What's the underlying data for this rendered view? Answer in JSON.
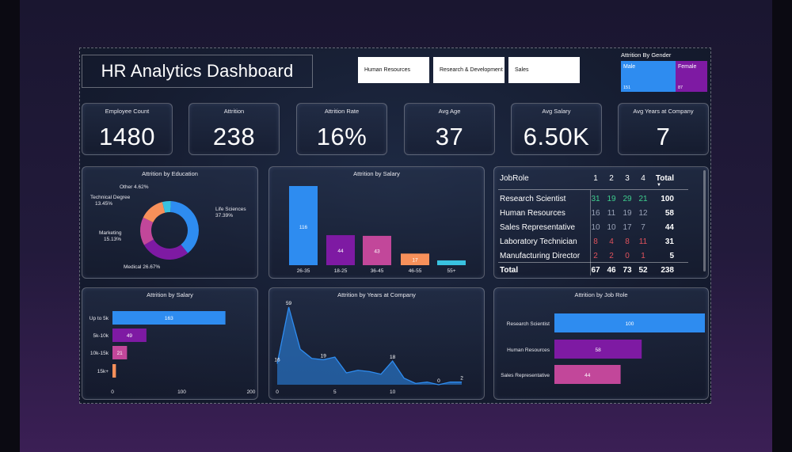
{
  "dashboard": {
    "title": "HR Analytics Dashboard",
    "slicers": [
      "Human Resources",
      "Research & Development",
      "Sales"
    ],
    "gender": {
      "title": "Attrition By Gender",
      "tiles": [
        {
          "label": "Male",
          "count": "151",
          "color": "#2e8cf0"
        },
        {
          "label": "Female",
          "count": "87",
          "color": "#7e1aa3"
        }
      ]
    }
  },
  "kpis": [
    {
      "label": "Employee Count",
      "value": "1480"
    },
    {
      "label": "Attrition",
      "value": "238"
    },
    {
      "label": "Attrition Rate",
      "value": "16%"
    },
    {
      "label": "Avg Age",
      "value": "37"
    },
    {
      "label": "Avg Salary",
      "value": "6.50K"
    },
    {
      "label": "Avg Years at Company",
      "value": "7"
    }
  ],
  "colors": {
    "blue": "#2e8cf0",
    "purple": "#7e1aa3",
    "pink": "#c2479a",
    "orange": "#f7905a",
    "cyan": "#39c2e0",
    "green": "#3ecf8e",
    "red": "#e0525c"
  },
  "chart_data": [
    {
      "type": "pie",
      "title": "Attrition by Education",
      "categories": [
        "Life Sciences",
        "Medical",
        "Marketing",
        "Technical Degree",
        "Other"
      ],
      "values": [
        37.39,
        26.67,
        15.13,
        13.45,
        4.62
      ],
      "labels": [
        "37.39%",
        "26.67%",
        "15.13%",
        "13.45%",
        "4.62%"
      ],
      "colors": [
        "#2e8cf0",
        "#7e1aa3",
        "#c2479a",
        "#f7905a",
        "#39c2e0"
      ]
    },
    {
      "type": "bar",
      "title": "Attrition by Salary",
      "categories": [
        "26-35",
        "18-25",
        "36-45",
        "46-55",
        "55+"
      ],
      "values": [
        116,
        44,
        43,
        17,
        7
      ],
      "data_labels": [
        "116",
        "44",
        "43",
        "17",
        ""
      ],
      "colors": [
        "#2e8cf0",
        "#7e1aa3",
        "#c2479a",
        "#f7905a",
        "#39c2e0"
      ]
    },
    {
      "type": "table",
      "title": "",
      "columns": [
        "JobRole",
        "1",
        "2",
        "3",
        "4",
        "Total"
      ],
      "rows": [
        {
          "role": "Research Scientist",
          "values": [
            31,
            19,
            29,
            21
          ],
          "total": 100
        },
        {
          "role": "Human Resources",
          "values": [
            16,
            11,
            19,
            12
          ],
          "total": 58
        },
        {
          "role": "Sales Representative",
          "values": [
            10,
            10,
            17,
            7
          ],
          "total": 44
        },
        {
          "role": "Laboratory Technician",
          "values": [
            8,
            4,
            8,
            11
          ],
          "total": 31
        },
        {
          "role": "Manufacturing Director",
          "values": [
            2,
            2,
            0,
            1
          ],
          "total": 5
        }
      ],
      "total_row": {
        "role": "Total",
        "values": [
          67,
          46,
          73,
          52
        ],
        "total": 238
      },
      "row_colors": [
        "#3ecf8e",
        "#9aa3b8",
        "#9aa3b8",
        "#e0525c",
        "#e0525c"
      ]
    },
    {
      "type": "bar",
      "orientation": "horizontal",
      "title": "Attrition by Salary",
      "categories": [
        "Up to 5k",
        "5k-10k",
        "10k-15k",
        "15k+"
      ],
      "values": [
        163,
        49,
        21,
        5
      ],
      "data_labels": [
        "163",
        "49",
        "21",
        ""
      ],
      "xlim": [
        0,
        200
      ],
      "xticks": [
        "0",
        "100",
        "200"
      ],
      "colors": [
        "#2e8cf0",
        "#7e1aa3",
        "#c2479a",
        "#f7905a"
      ]
    },
    {
      "type": "area",
      "title": "Attrition by Years at Company",
      "x": [
        0,
        1,
        2,
        3,
        4,
        5,
        6,
        7,
        8,
        9,
        10,
        11,
        12,
        13,
        14,
        15,
        16
      ],
      "y": [
        16,
        59,
        27,
        20,
        19,
        21,
        9,
        11,
        10,
        8,
        18,
        5,
        1,
        2,
        0,
        2,
        2
      ],
      "data_labels": {
        "0": "16",
        "1": "59",
        "4": "19",
        "10": "18",
        "14": "0",
        "16": "2"
      },
      "xticks": [
        "0",
        "5",
        "10"
      ],
      "xlim": [
        0,
        16
      ],
      "ylim": [
        0,
        65
      ],
      "color": "#2e8cf0"
    },
    {
      "type": "bar",
      "orientation": "horizontal",
      "title": "Attrition by Job Role",
      "categories": [
        "Research Scientist",
        "Human Resources",
        "Sales Representative"
      ],
      "values": [
        100,
        58,
        44
      ],
      "data_labels": [
        "100",
        "58",
        "44"
      ],
      "xlim": [
        0,
        100
      ],
      "colors": [
        "#2e8cf0",
        "#7e1aa3",
        "#c2479a"
      ]
    }
  ]
}
